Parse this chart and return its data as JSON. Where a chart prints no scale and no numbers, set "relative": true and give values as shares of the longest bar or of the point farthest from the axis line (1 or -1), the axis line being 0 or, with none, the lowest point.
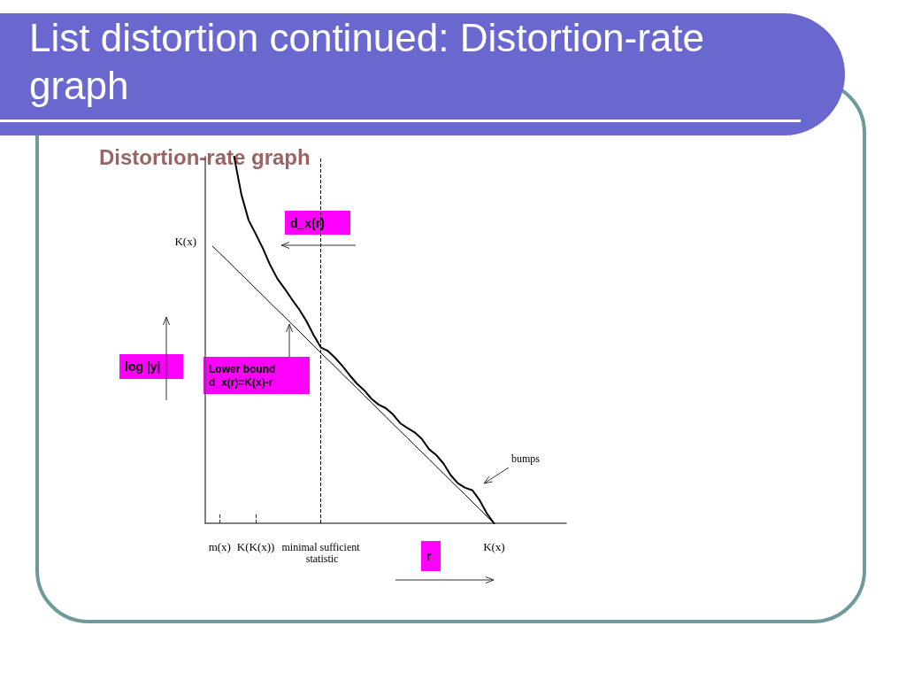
{
  "chart_data": {
    "type": "line",
    "title": "List distortion continued: Distortion-rate graph",
    "subtitle": "Distortion-rate graph",
    "xlabel": "r",
    "ylabel": "log |y|",
    "relative": true,
    "categories": [
      null,
      null,
      "m(x)",
      null,
      null,
      null,
      null,
      "K(K(x))",
      null,
      null,
      null,
      null,
      null,
      null,
      null,
      null,
      "minimal sufficient statistic",
      null,
      null,
      null,
      null,
      null,
      null,
      null,
      null,
      null,
      null,
      null,
      null,
      null,
      null,
      null,
      null,
      null,
      null,
      null,
      null,
      null,
      null,
      null,
      "K(x)",
      null,
      null,
      null,
      null,
      null,
      null,
      null,
      null,
      null,
      null
    ],
    "series": [
      {
        "color": "#000000",
        "line_style": "solid",
        "values": [
          null,
          null,
          null,
          null,
          1.0,
          0.897,
          0.827,
          0.789,
          0.749,
          0.704,
          0.667,
          0.64,
          0.611,
          0.584,
          0.552,
          0.514,
          0.48,
          0.47,
          0.451,
          0.429,
          0.404,
          0.381,
          0.363,
          0.34,
          0.324,
          0.314,
          0.297,
          0.273,
          0.26,
          0.248,
          0.23,
          0.202,
          0.186,
          0.163,
          0.131,
          0.109,
          0.097,
          0.09,
          0.063,
          0.027,
          0.0,
          null,
          null,
          null,
          null,
          null,
          null,
          null,
          null,
          null,
          null
        ]
      },
      {
        "color": "#000000",
        "line_style": "solid",
        "values": [
          null,
          0.756,
          0.737,
          0.718,
          0.698,
          0.679,
          0.66,
          0.64,
          0.621,
          0.601,
          0.582,
          0.563,
          0.543,
          0.524,
          0.504,
          0.485,
          0.465,
          0.446,
          0.427,
          0.407,
          0.388,
          0.369,
          0.349,
          0.33,
          0.31,
          0.291,
          0.271,
          0.252,
          0.233,
          0.213,
          0.194,
          0.175,
          0.155,
          0.136,
          0.116,
          0.097,
          0.078,
          0.058,
          0.039,
          0.019,
          0.0,
          null,
          null,
          null,
          null,
          null,
          null,
          null,
          null,
          null,
          null
        ]
      }
    ],
    "ref_lines": [
      {
        "axis": "x",
        "value": "minimal sufficient statistic",
        "line_style": "dashed"
      }
    ],
    "annotations": [
      "d_x(r)",
      "Lower bound\nd_x(r)=K(x)-r",
      "bumps",
      "K(x)"
    ]
  }
}
